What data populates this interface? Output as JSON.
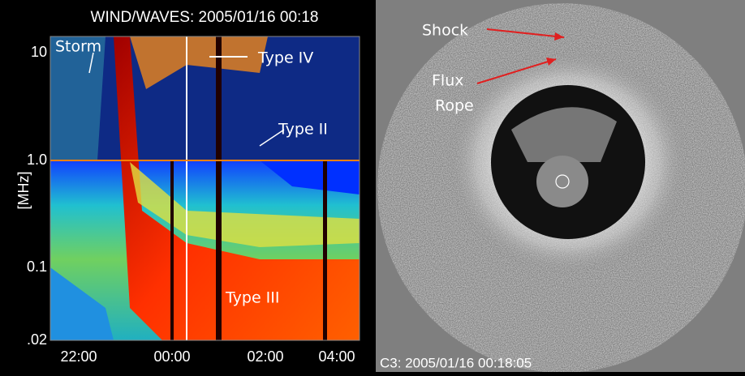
{
  "spectrum_panel": {
    "title": "WIND/WAVES: 2005/01/16 00:18",
    "y_label": "[MHz]",
    "y_ticks": [
      "10",
      "1.0",
      "0.1",
      ".02"
    ],
    "x_ticks": [
      "22:00",
      "00:00",
      "02:00",
      "04:00"
    ],
    "annotations": [
      "Storm",
      "Type IV",
      "Type II",
      "Type III"
    ]
  },
  "coronagraph_panel": {
    "annotations": [
      "Shock",
      "Flux",
      "Rope"
    ],
    "caption": "C3: 2005/01/16 00:18:05"
  }
}
